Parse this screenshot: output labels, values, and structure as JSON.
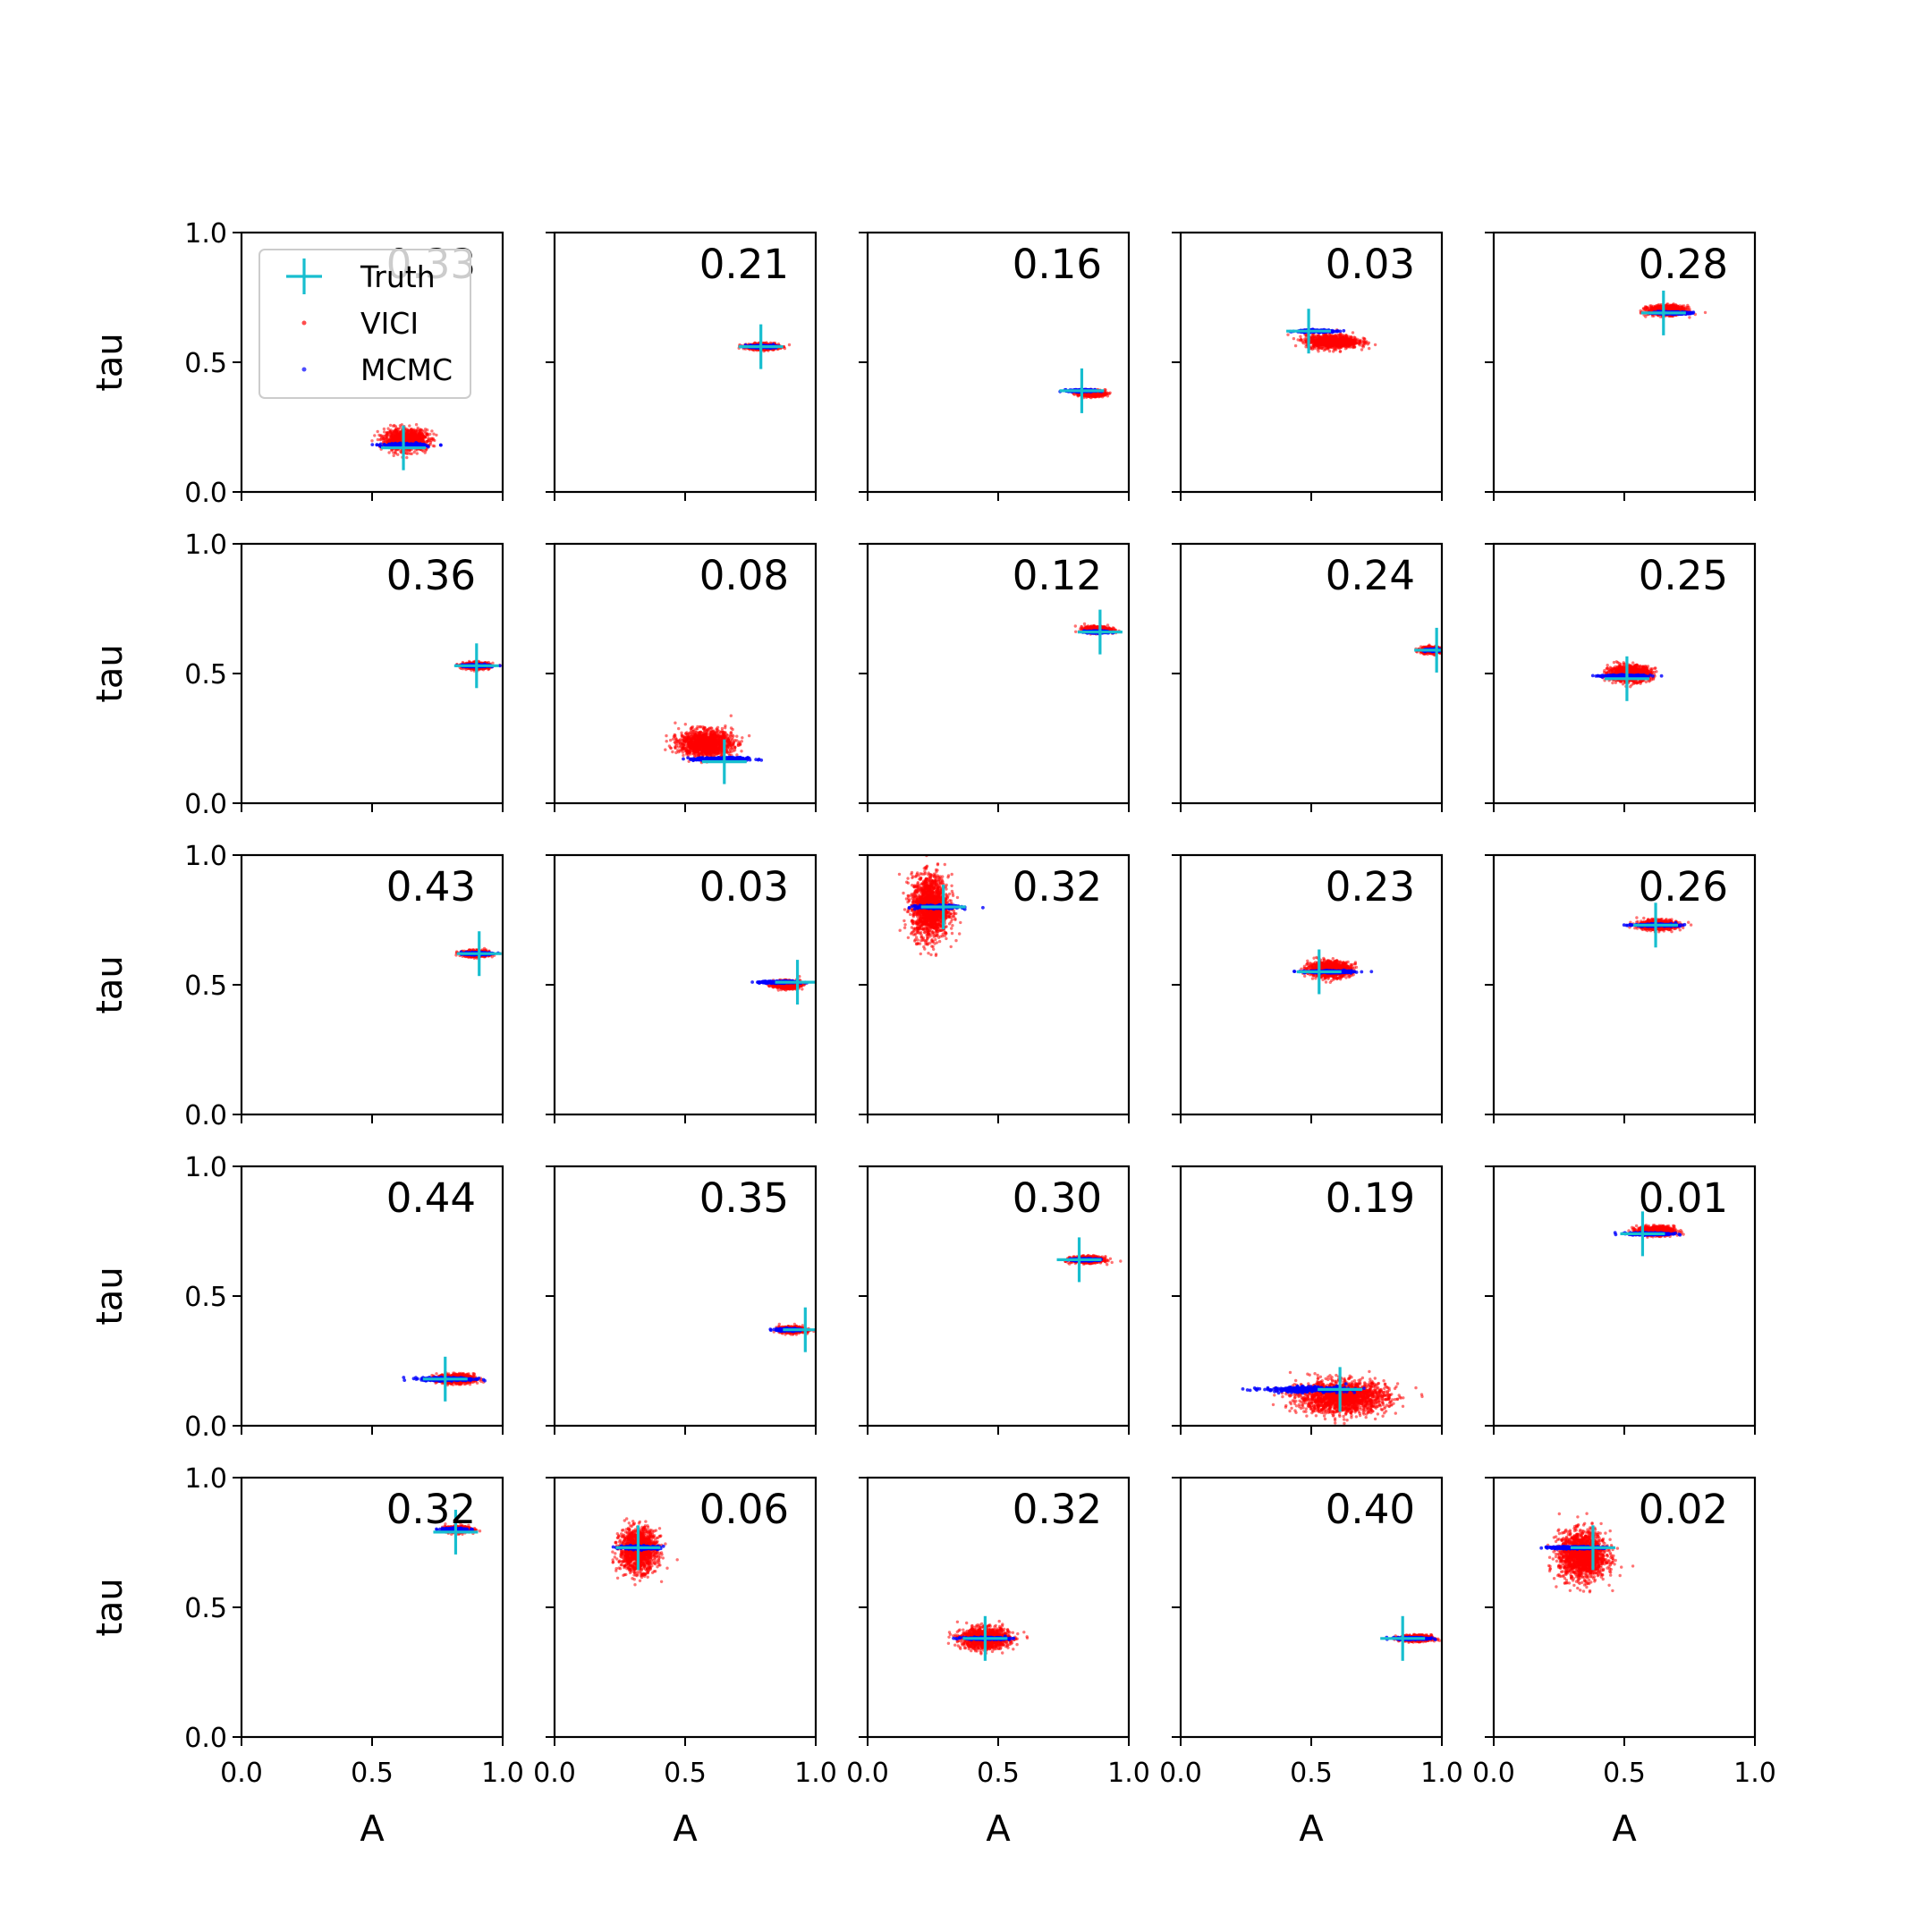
{
  "chart_data": {
    "type": "scatter",
    "grid": "5x5",
    "xlabel": "A",
    "ylabel": "tau",
    "xlim": [
      0,
      1
    ],
    "ylim": [
      0,
      1
    ],
    "xticks": [
      "0.0",
      "0.5",
      "1.0"
    ],
    "yticks": [
      "0.0",
      "0.5",
      "1.0"
    ],
    "grid_lines": false,
    "legend": {
      "placement": "upper-left of first panel",
      "entries": [
        {
          "label": "Truth",
          "marker": "plus",
          "color": "#17becf"
        },
        {
          "label": "VICI",
          "marker": "dot",
          "color": "#ff0000"
        },
        {
          "label": "MCMC",
          "marker": "dot",
          "color": "#0000ff"
        }
      ]
    },
    "colors": {
      "vici": "#ff0000",
      "mcmc": "#0000ff",
      "truth": "#17becf"
    },
    "panels": [
      {
        "label": "0.33",
        "truth": [
          0.62,
          0.17
        ],
        "vici": {
          "center": [
            0.63,
            0.2
          ],
          "spread": [
            0.08,
            0.04
          ]
        },
        "mcmc": {
          "center": [
            0.62,
            0.18
          ],
          "spread": [
            0.08,
            0.006
          ]
        }
      },
      {
        "label": "0.21",
        "truth": [
          0.79,
          0.56
        ],
        "vici": {
          "center": [
            0.8,
            0.56
          ],
          "spread": [
            0.06,
            0.012
          ]
        },
        "mcmc": {
          "center": [
            0.79,
            0.56
          ],
          "spread": [
            0.05,
            0.004
          ]
        }
      },
      {
        "label": "0.16",
        "truth": [
          0.82,
          0.39
        ],
        "vici": {
          "center": [
            0.86,
            0.38
          ],
          "spread": [
            0.05,
            0.012
          ]
        },
        "mcmc": {
          "center": [
            0.82,
            0.39
          ],
          "spread": [
            0.05,
            0.004
          ]
        }
      },
      {
        "label": "0.03",
        "truth": [
          0.49,
          0.62
        ],
        "vici": {
          "center": [
            0.58,
            0.58
          ],
          "spread": [
            0.1,
            0.025
          ]
        },
        "mcmc": {
          "center": [
            0.52,
            0.62
          ],
          "spread": [
            0.07,
            0.004
          ]
        }
      },
      {
        "label": "0.28",
        "truth": [
          0.65,
          0.69
        ],
        "vici": {
          "center": [
            0.66,
            0.7
          ],
          "spread": [
            0.07,
            0.018
          ]
        },
        "mcmc": {
          "center": [
            0.68,
            0.69
          ],
          "spread": [
            0.07,
            0.004
          ]
        }
      },
      {
        "label": "0.36",
        "truth": [
          0.9,
          0.53
        ],
        "vici": {
          "center": [
            0.9,
            0.53
          ],
          "spread": [
            0.05,
            0.012
          ]
        },
        "mcmc": {
          "center": [
            0.9,
            0.53
          ],
          "spread": [
            0.05,
            0.004
          ]
        }
      },
      {
        "label": "0.08",
        "truth": [
          0.65,
          0.16
        ],
        "vici": {
          "center": [
            0.58,
            0.23
          ],
          "spread": [
            0.1,
            0.05
          ]
        },
        "mcmc": {
          "center": [
            0.64,
            0.17
          ],
          "spread": [
            0.1,
            0.006
          ]
        }
      },
      {
        "label": "0.12",
        "truth": [
          0.89,
          0.66
        ],
        "vici": {
          "center": [
            0.88,
            0.67
          ],
          "spread": [
            0.05,
            0.012
          ]
        },
        "mcmc": {
          "center": [
            0.88,
            0.66
          ],
          "spread": [
            0.05,
            0.004
          ]
        }
      },
      {
        "label": "0.24",
        "truth": [
          0.98,
          0.59
        ],
        "vici": {
          "center": [
            0.96,
            0.59
          ],
          "spread": [
            0.04,
            0.012
          ]
        },
        "mcmc": {
          "center": [
            0.97,
            0.59
          ],
          "spread": [
            0.03,
            0.004
          ]
        }
      },
      {
        "label": "0.25",
        "truth": [
          0.51,
          0.48
        ],
        "vici": {
          "center": [
            0.52,
            0.5
          ],
          "spread": [
            0.08,
            0.03
          ]
        },
        "mcmc": {
          "center": [
            0.5,
            0.49
          ],
          "spread": [
            0.08,
            0.004
          ]
        }
      },
      {
        "label": "0.43",
        "truth": [
          0.91,
          0.62
        ],
        "vici": {
          "center": [
            0.9,
            0.62
          ],
          "spread": [
            0.05,
            0.012
          ]
        },
        "mcmc": {
          "center": [
            0.9,
            0.62
          ],
          "spread": [
            0.05,
            0.004
          ]
        }
      },
      {
        "label": "0.03",
        "truth": [
          0.93,
          0.51
        ],
        "vici": {
          "center": [
            0.89,
            0.5
          ],
          "spread": [
            0.05,
            0.015
          ]
        },
        "mcmc": {
          "center": [
            0.86,
            0.51
          ],
          "spread": [
            0.07,
            0.004
          ]
        }
      },
      {
        "label": "0.32",
        "truth": [
          0.29,
          0.8
        ],
        "vici": {
          "center": [
            0.24,
            0.8
          ],
          "spread": [
            0.07,
            0.12
          ]
        },
        "mcmc": {
          "center": [
            0.27,
            0.8
          ],
          "spread": [
            0.08,
            0.006
          ]
        }
      },
      {
        "label": "0.23",
        "truth": [
          0.53,
          0.55
        ],
        "vici": {
          "center": [
            0.57,
            0.56
          ],
          "spread": [
            0.08,
            0.03
          ]
        },
        "mcmc": {
          "center": [
            0.57,
            0.55
          ],
          "spread": [
            0.09,
            0.004
          ]
        }
      },
      {
        "label": "0.26",
        "truth": [
          0.62,
          0.73
        ],
        "vici": {
          "center": [
            0.63,
            0.73
          ],
          "spread": [
            0.07,
            0.018
          ]
        },
        "mcmc": {
          "center": [
            0.62,
            0.73
          ],
          "spread": [
            0.08,
            0.004
          ]
        }
      },
      {
        "label": "0.44",
        "truth": [
          0.78,
          0.18
        ],
        "vici": {
          "center": [
            0.82,
            0.18
          ],
          "spread": [
            0.07,
            0.018
          ]
        },
        "mcmc": {
          "center": [
            0.79,
            0.18
          ],
          "spread": [
            0.1,
            0.006
          ]
        }
      },
      {
        "label": "0.35",
        "truth": [
          0.96,
          0.37
        ],
        "vici": {
          "center": [
            0.91,
            0.37
          ],
          "spread": [
            0.05,
            0.012
          ]
        },
        "mcmc": {
          "center": [
            0.9,
            0.37
          ],
          "spread": [
            0.05,
            0.004
          ]
        }
      },
      {
        "label": "0.30",
        "truth": [
          0.81,
          0.64
        ],
        "vici": {
          "center": [
            0.84,
            0.64
          ],
          "spread": [
            0.06,
            0.012
          ]
        },
        "mcmc": {
          "center": [
            0.83,
            0.64
          ],
          "spread": [
            0.05,
            0.004
          ]
        }
      },
      {
        "label": "0.19",
        "truth": [
          0.61,
          0.14
        ],
        "vici": {
          "center": [
            0.62,
            0.11
          ],
          "spread": [
            0.17,
            0.06
          ]
        },
        "mcmc": {
          "center": [
            0.48,
            0.14
          ],
          "spread": [
            0.16,
            0.01
          ]
        }
      },
      {
        "label": "0.01",
        "truth": [
          0.57,
          0.74
        ],
        "vici": {
          "center": [
            0.62,
            0.75
          ],
          "spread": [
            0.07,
            0.018
          ]
        },
        "mcmc": {
          "center": [
            0.6,
            0.74
          ],
          "spread": [
            0.08,
            0.004
          ]
        }
      },
      {
        "label": "0.32",
        "truth": [
          0.82,
          0.79
        ],
        "vici": {
          "center": [
            0.83,
            0.8
          ],
          "spread": [
            0.05,
            0.012
          ]
        },
        "mcmc": {
          "center": [
            0.82,
            0.8
          ],
          "spread": [
            0.05,
            0.004
          ]
        }
      },
      {
        "label": "0.06",
        "truth": [
          0.32,
          0.73
        ],
        "vici": {
          "center": [
            0.32,
            0.72
          ],
          "spread": [
            0.07,
            0.08
          ]
        },
        "mcmc": {
          "center": [
            0.33,
            0.73
          ],
          "spread": [
            0.07,
            0.006
          ]
        }
      },
      {
        "label": "0.32",
        "truth": [
          0.45,
          0.38
        ],
        "vici": {
          "center": [
            0.45,
            0.38
          ],
          "spread": [
            0.09,
            0.04
          ]
        },
        "mcmc": {
          "center": [
            0.45,
            0.38
          ],
          "spread": [
            0.08,
            0.004
          ]
        }
      },
      {
        "label": "0.40",
        "truth": [
          0.85,
          0.38
        ],
        "vici": {
          "center": [
            0.9,
            0.38
          ],
          "spread": [
            0.06,
            0.012
          ]
        },
        "mcmc": {
          "center": [
            0.89,
            0.38
          ],
          "spread": [
            0.06,
            0.004
          ]
        }
      },
      {
        "label": "0.02",
        "truth": [
          0.38,
          0.73
        ],
        "vici": {
          "center": [
            0.34,
            0.7
          ],
          "spread": [
            0.09,
            0.09
          ]
        },
        "mcmc": {
          "center": [
            0.31,
            0.73
          ],
          "spread": [
            0.1,
            0.004
          ]
        }
      }
    ]
  }
}
